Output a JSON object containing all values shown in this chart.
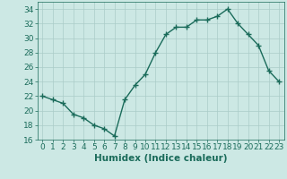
{
  "x": [
    0,
    1,
    2,
    3,
    4,
    5,
    6,
    7,
    8,
    9,
    10,
    11,
    12,
    13,
    14,
    15,
    16,
    17,
    18,
    19,
    20,
    21,
    22,
    23
  ],
  "y": [
    22,
    21.5,
    21,
    19.5,
    19,
    18,
    17.5,
    16.5,
    21.5,
    23.5,
    25,
    28,
    30.5,
    31.5,
    31.5,
    32.5,
    32.5,
    33,
    34,
    32,
    30.5,
    29,
    25.5,
    24
  ],
  "line_color": "#1a6b5a",
  "marker": "+",
  "bg_color": "#cce8e4",
  "grid_color": "#aaccc8",
  "xlabel": "Humidex (Indice chaleur)",
  "ylim": [
    16,
    35
  ],
  "xlim": [
    -0.5,
    23.5
  ],
  "yticks": [
    16,
    18,
    20,
    22,
    24,
    26,
    28,
    30,
    32,
    34
  ],
  "xticks": [
    0,
    1,
    2,
    3,
    4,
    5,
    6,
    7,
    8,
    9,
    10,
    11,
    12,
    13,
    14,
    15,
    16,
    17,
    18,
    19,
    20,
    21,
    22,
    23
  ],
  "xlabel_fontsize": 7.5,
  "tick_fontsize": 6.5,
  "line_width": 1.0,
  "marker_size": 4
}
